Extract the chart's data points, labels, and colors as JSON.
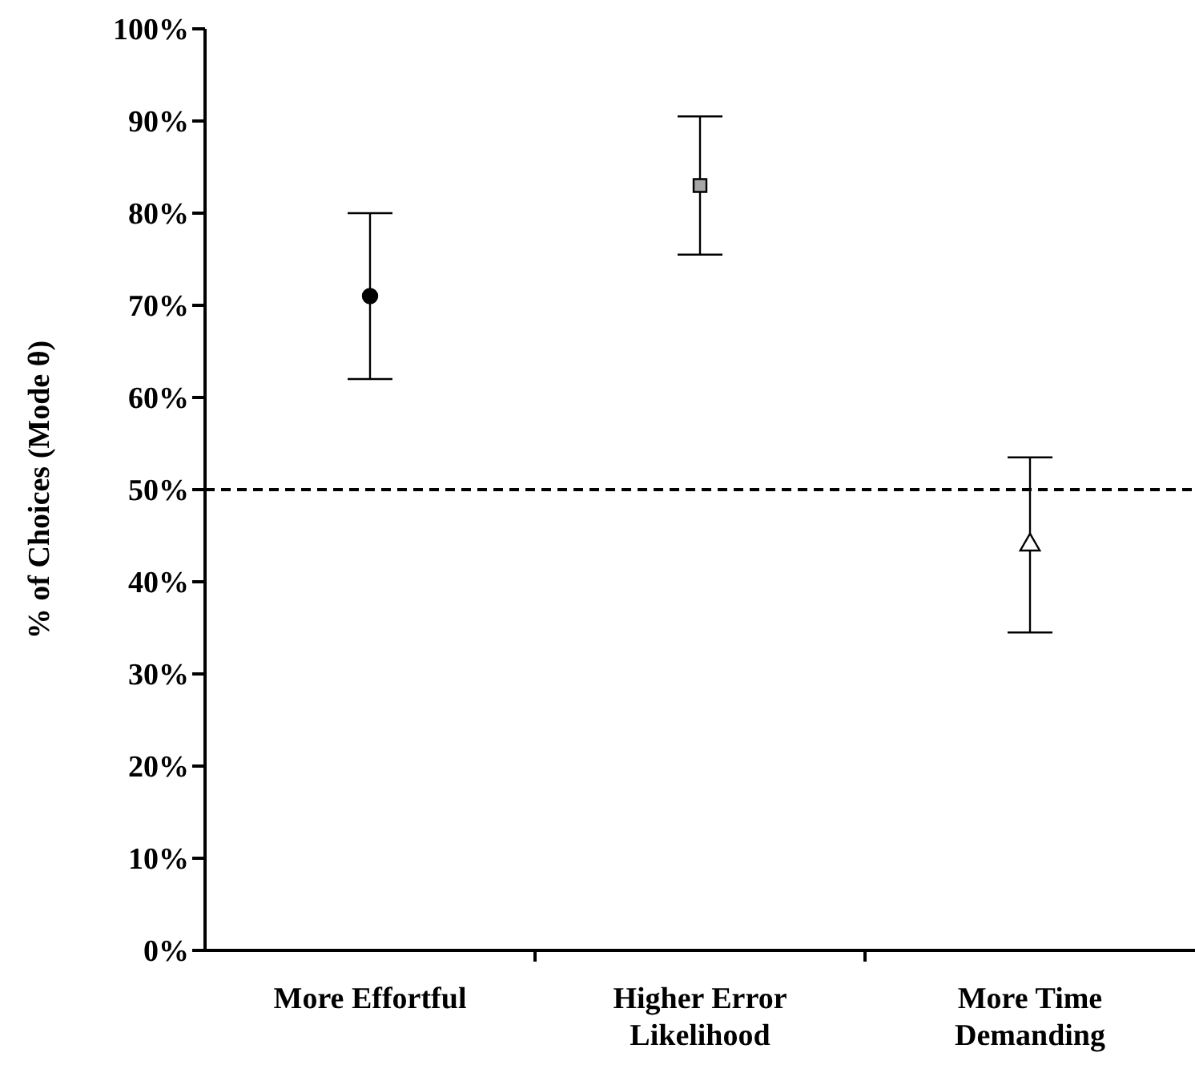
{
  "chart_data": {
    "type": "scatter",
    "ylabel": "% of Choices (Mode θ)",
    "categories": [
      "More Effortful",
      "Higher Error Likelihood",
      "More Time Demanding"
    ],
    "series": [
      {
        "color": "#000000",
        "marker": "circle",
        "values": [
          71,
          null,
          null
        ],
        "errors": [
          [
            62,
            80
          ],
          null,
          null
        ]
      },
      {
        "color": "#a6a6a6",
        "marker": "square",
        "values": [
          null,
          83,
          null
        ],
        "errors": [
          null,
          [
            75.5,
            90.5
          ],
          null
        ]
      },
      {
        "color": "#ffffff",
        "marker": "triangle",
        "values": [
          null,
          null,
          44
        ],
        "errors": [
          null,
          null,
          [
            34.5,
            53.5
          ]
        ]
      }
    ],
    "ylim": [
      0,
      100
    ],
    "yticks": [
      {
        "value": 0,
        "label": "0%"
      },
      {
        "value": 10,
        "label": "10%"
      },
      {
        "value": 20,
        "label": "20%"
      },
      {
        "value": 30,
        "label": "30%"
      },
      {
        "value": 40,
        "label": "40%"
      },
      {
        "value": 50,
        "label": "50%"
      },
      {
        "value": 60,
        "label": "60%"
      },
      {
        "value": 70,
        "label": "70%"
      },
      {
        "value": 80,
        "label": "80%"
      },
      {
        "value": 90,
        "label": "90%"
      },
      {
        "value": 100,
        "label": "100%"
      }
    ],
    "ref_lines": [
      {
        "axis": "y",
        "value": 50,
        "color": "#000000",
        "line_style": "dashed"
      }
    ]
  }
}
